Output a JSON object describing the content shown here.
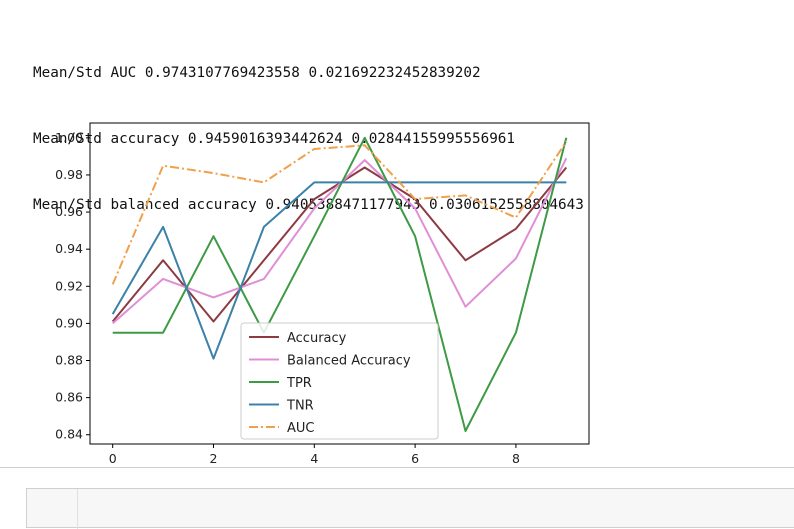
{
  "output": {
    "lines": [
      "Mean/Std AUC 0.9743107769423558 0.021692232452839202",
      "Mean/Std accuracy 0.9459016393442624 0.02844155995556961",
      "Mean/Std balanced accuracy 0.9405388471177943 0.030615255880464​3"
    ]
  },
  "chart_data": {
    "type": "line",
    "x": [
      0,
      1,
      2,
      3,
      4,
      5,
      6,
      7,
      8,
      9
    ],
    "xticks": [
      "0",
      "2",
      "4",
      "6",
      "8"
    ],
    "yticks": [
      "0.84",
      "0.86",
      "0.88",
      "0.90",
      "0.92",
      "0.94",
      "0.96",
      "0.98",
      "1.00"
    ],
    "xlim": [
      -0.45,
      9.45
    ],
    "ylim": [
      0.835,
      1.008
    ],
    "legend_position": "lower-center",
    "grid": false,
    "series": [
      {
        "name": "Accuracy",
        "color": "#8c3b42",
        "dash": "solid",
        "values": [
          0.901,
          0.934,
          0.901,
          0.934,
          0.967,
          0.984,
          0.967,
          0.934,
          0.951,
          0.984
        ]
      },
      {
        "name": "Balanced Accuracy",
        "color": "#e08fd6",
        "dash": "solid",
        "values": [
          0.9,
          0.924,
          0.914,
          0.924,
          0.962,
          0.988,
          0.962,
          0.909,
          0.935,
          0.989
        ]
      },
      {
        "name": "TPR",
        "color": "#3d9a45",
        "dash": "solid",
        "values": [
          0.895,
          0.895,
          0.947,
          0.895,
          0.947,
          1.0,
          0.947,
          0.842,
          0.895,
          1.0
        ]
      },
      {
        "name": "TNR",
        "color": "#3b81a8",
        "dash": "solid",
        "values": [
          0.905,
          0.952,
          0.881,
          0.952,
          0.976,
          0.976,
          0.976,
          0.976,
          0.976,
          0.976
        ]
      },
      {
        "name": "AUC",
        "color": "#f0a04b",
        "dash": "dashdot",
        "values": [
          0.921,
          0.985,
          0.981,
          0.976,
          0.994,
          0.996,
          0.967,
          0.969,
          0.957,
          0.998
        ]
      }
    ]
  }
}
